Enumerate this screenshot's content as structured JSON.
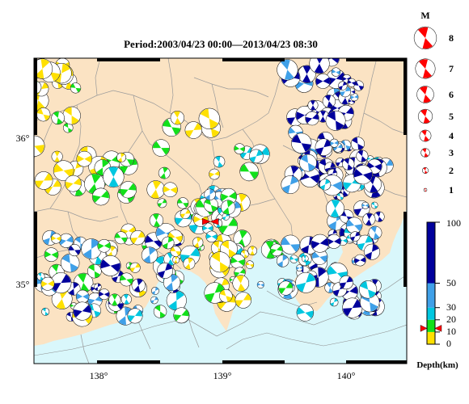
{
  "title": "Period:2003/04/23 00:00––2013/04/23 08:30",
  "axes": {
    "lon_range": [
      137.5,
      140.5
    ],
    "lat_range": [
      34.55,
      36.55
    ],
    "lon_ticks": [
      {
        "value": 138,
        "label": "138°"
      },
      {
        "value": 139,
        "label": "139°"
      },
      {
        "value": 140,
        "label": "140°"
      }
    ],
    "lat_ticks": [
      {
        "value": 36,
        "label": "36°"
      },
      {
        "value": 35,
        "label": "35°"
      }
    ]
  },
  "colors": {
    "land": "#fbe3c3",
    "sea": "#d9f7fb",
    "boundary": "#9a9a9a",
    "mechanism_dark": "#00009c",
    "mechanism_cyan": "#00c7e0",
    "mechanism_blue": "#3fa0e8",
    "mechanism_green": "#12e01a",
    "mechanism_yellow": "#ffe000",
    "legend_red": "#ff0000"
  },
  "magnitude_legend": {
    "title": "M",
    "items": [
      {
        "label": "8",
        "mag": 8
      },
      {
        "label": "7",
        "mag": 7
      },
      {
        "label": "6",
        "mag": 6
      },
      {
        "label": "5",
        "mag": 5
      },
      {
        "label": "4",
        "mag": 4
      },
      {
        "label": "3",
        "mag": 3
      },
      {
        "label": "2",
        "mag": 2
      },
      {
        "label": "1",
        "mag": 1
      }
    ]
  },
  "depth_scale": {
    "title": "Depth(km)",
    "range": [
      0,
      100
    ],
    "ticks": [
      {
        "value": 100,
        "label": "100"
      },
      {
        "value": 50,
        "label": "50"
      },
      {
        "value": 30,
        "label": "30"
      },
      {
        "value": 20,
        "label": "20"
      },
      {
        "value": 10,
        "label": "10"
      },
      {
        "value": 0,
        "label": "0"
      }
    ],
    "bands": [
      {
        "from": 0,
        "to": 10,
        "color": "#ffe000"
      },
      {
        "from": 10,
        "to": 20,
        "color": "#12e01a"
      },
      {
        "from": 20,
        "to": 30,
        "color": "#00c7e0"
      },
      {
        "from": 30,
        "to": 50,
        "color": "#3fa0e8"
      },
      {
        "from": 50,
        "to": 100,
        "color": "#00009c"
      }
    ],
    "marker_depth": 13
  },
  "epicenter": {
    "lon": 138.92,
    "lat": 35.48,
    "color": "#ff0000"
  }
}
